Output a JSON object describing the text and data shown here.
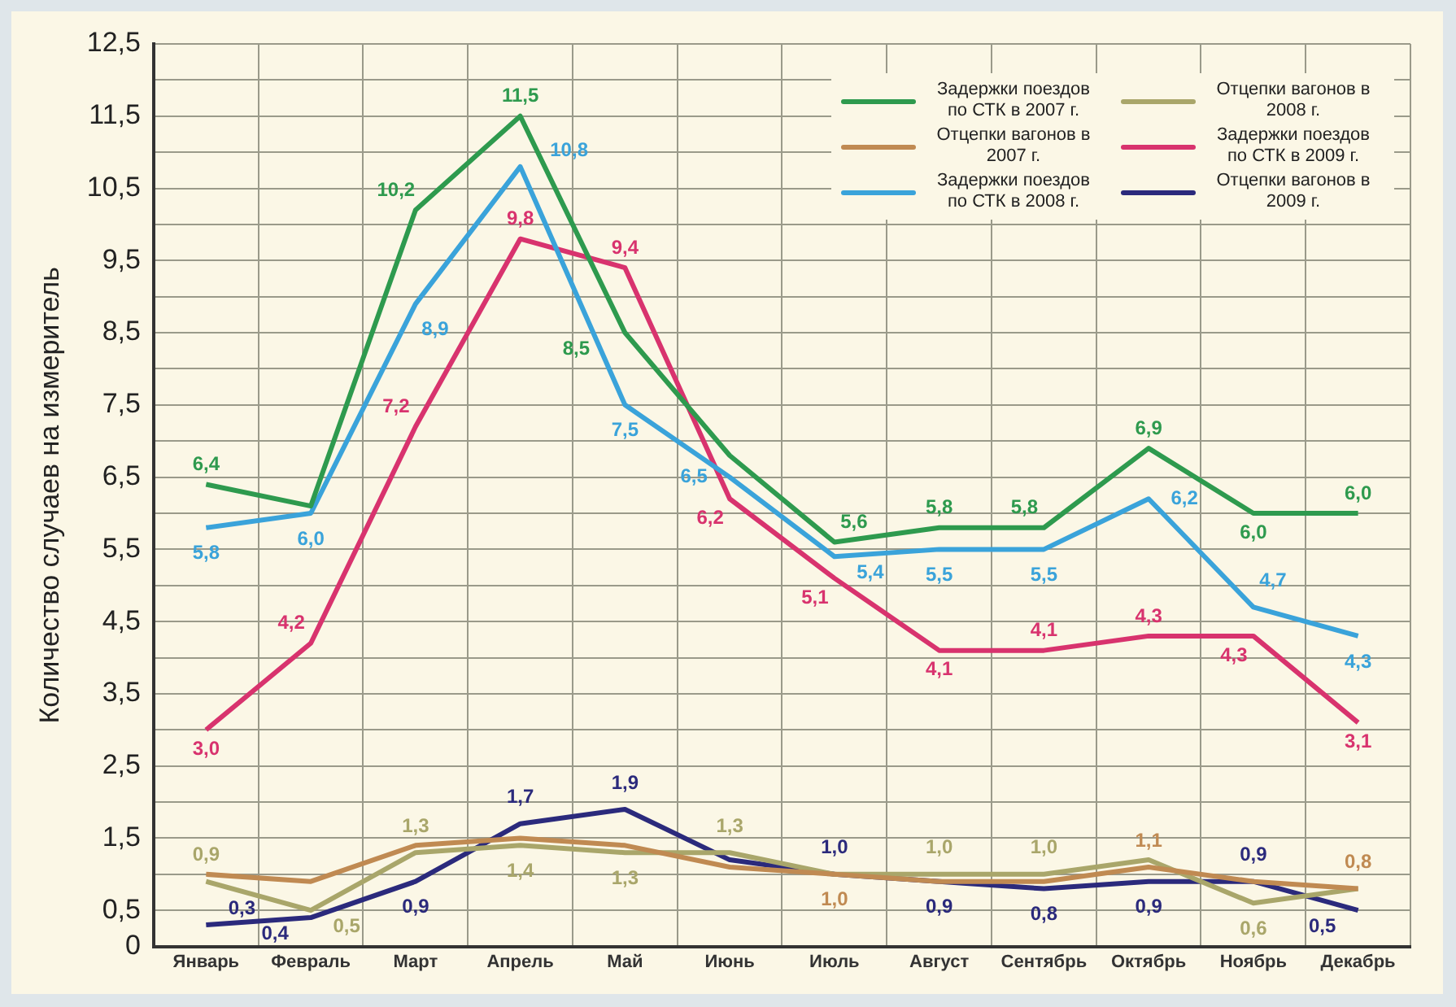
{
  "chart_data": {
    "type": "line",
    "ylabel": "Количество случаев на измеритель",
    "categories": [
      "Январь",
      "Февраль",
      "Март",
      "Апрель",
      "Май",
      "Июнь",
      "Июль",
      "Август",
      "Сентябрь",
      "Октябрь",
      "Ноябрь",
      "Декабрь"
    ],
    "ylim": [
      0,
      12.5
    ],
    "yticks": [
      0,
      {
        "value": 0.5,
        "label": "0,5"
      },
      {
        "value": 1,
        "label": null
      },
      {
        "value": 1.5,
        "label": "1,5"
      },
      {
        "value": 2,
        "label": null
      },
      {
        "value": 2.5,
        "label": "2,5"
      },
      {
        "value": 3,
        "label": null
      },
      {
        "value": 3.5,
        "label": "3,5"
      },
      {
        "value": 4,
        "label": null
      },
      {
        "value": 4.5,
        "label": "4,5"
      },
      {
        "value": 5,
        "label": null
      },
      {
        "value": 5.5,
        "label": "5,5"
      },
      {
        "value": 6,
        "label": null
      },
      {
        "value": 6.5,
        "label": "6,5"
      },
      {
        "value": 7,
        "label": null
      },
      {
        "value": 7.5,
        "label": "7,5"
      },
      {
        "value": 8,
        "label": null
      },
      {
        "value": 8.5,
        "label": "8,5"
      },
      {
        "value": 9,
        "label": null
      },
      {
        "value": 9.5,
        "label": "9,5"
      },
      {
        "value": 10,
        "label": null
      },
      {
        "value": 10.5,
        "label": "10,5"
      },
      {
        "value": 11,
        "label": null
      },
      {
        "value": 11.5,
        "label": "11,5"
      },
      {
        "value": 12,
        "label": null
      },
      {
        "value": 12.5,
        "label": "12,5"
      }
    ],
    "grid": true,
    "legend": "top right",
    "marker": "none",
    "line_style": "solid",
    "series": [
      {
        "name": "Задержки поездов по СТК в 2007 г.",
        "color": "#2e9a4e",
        "values": [
          6.4,
          6.1,
          10.2,
          11.5,
          8.5,
          6.8,
          5.6,
          5.8,
          5.8,
          6.9,
          6.0,
          6.0
        ],
        "value_labels": [
          "6,4",
          null,
          "10,2",
          "11,5",
          "8,5",
          null,
          "5,6",
          "5,8",
          "5,8",
          "6,9",
          "6,0",
          "6,0"
        ]
      },
      {
        "name": "Отцепки вагонов в 2007 г.",
        "color": "#c08a52",
        "values": [
          1.0,
          0.9,
          1.4,
          1.5,
          1.4,
          1.1,
          1.0,
          0.9,
          0.9,
          1.1,
          0.9,
          0.8
        ],
        "value_labels": [
          null,
          null,
          null,
          null,
          null,
          null,
          "1,0",
          null,
          null,
          "1,1",
          null,
          "0,8"
        ]
      },
      {
        "name": "Задержки поездов по СТК в 2008 г.",
        "color": "#3aa3da",
        "values": [
          5.8,
          6.0,
          8.9,
          10.8,
          7.5,
          6.5,
          5.4,
          5.5,
          5.5,
          6.2,
          4.7,
          4.3
        ],
        "value_labels": [
          "5,8",
          "6,0",
          "8,9",
          "10,8",
          "7,5",
          "6,5",
          "5,4",
          "5,5",
          "5,5",
          "6,2",
          "4,7",
          "4,3"
        ]
      },
      {
        "name": "Отцепки вагонов в 2008 г.",
        "color": "#a9a66a",
        "values": [
          0.9,
          0.5,
          1.3,
          1.4,
          1.3,
          1.3,
          1.0,
          1.0,
          1.0,
          1.2,
          0.6,
          0.8
        ],
        "value_labels": [
          "0,9",
          "0,5",
          "1,3",
          "1,4",
          "1,3",
          "1,3",
          null,
          "1,0",
          "1,0",
          null,
          "0,6",
          null
        ]
      },
      {
        "name": "Задержки поездов по СТК в 2009 г.",
        "color": "#d8336e",
        "values": [
          3.0,
          4.2,
          7.2,
          9.8,
          9.4,
          6.2,
          5.1,
          4.1,
          4.1,
          4.3,
          4.3,
          3.1
        ],
        "value_labels": [
          "3,0",
          "4,2",
          "7,2",
          "9,8",
          "9,4",
          "6,2",
          "5,1",
          "4,1",
          "4,1",
          "4,3",
          "4,3",
          "3,1"
        ]
      },
      {
        "name": "Отцепки вагонов в 2009 г.",
        "color": "#2b2a7c",
        "values": [
          0.3,
          0.4,
          0.9,
          1.7,
          1.9,
          1.2,
          1.0,
          0.9,
          0.8,
          0.9,
          0.9,
          0.5
        ],
        "value_labels": [
          "0,3",
          "0,4",
          "0,9",
          "1,7",
          "1,9",
          null,
          "1,0",
          "0,9",
          "0,8",
          "0,9",
          "0,9",
          "0,5"
        ]
      }
    ]
  }
}
